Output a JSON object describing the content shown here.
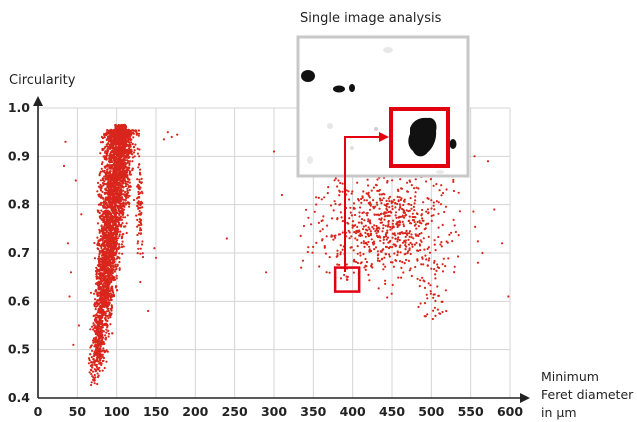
{
  "chart_data": {
    "type": "scatter",
    "title": "",
    "xlabel": "Minimum Feret diameter in µm",
    "xlabel_lines": [
      "Minimum",
      "Feret diameter",
      "in µm"
    ],
    "ylabel": "Circularity",
    "xlim": [
      0,
      600
    ],
    "ylim": [
      0.4,
      1.0
    ],
    "x_ticks": [
      "0",
      "50",
      "100",
      "150",
      "200",
      "250",
      "300",
      "350",
      "400",
      "450",
      "500",
      "550",
      "600"
    ],
    "y_ticks": [
      "0.4",
      "0.5",
      "0.6",
      "0.7",
      "0.8",
      "0.9",
      "1.0"
    ],
    "grid": true,
    "point_color": "#d9261c",
    "clusters": [
      {
        "name": "main",
        "x_range": [
          60,
          112
        ],
        "y_range": [
          0.4,
          0.965
        ],
        "approx_points": 3500
      },
      {
        "name": "secondary",
        "x_range": [
          330,
          530
        ],
        "y_range": [
          0.55,
          0.89
        ],
        "approx_points": 700
      }
    ],
    "scattered_points": [
      [
        35,
        0.93
      ],
      [
        42,
        0.66
      ],
      [
        48,
        0.85
      ],
      [
        33,
        0.88
      ],
      [
        55,
        0.78
      ],
      [
        52,
        0.55
      ],
      [
        40,
        0.61
      ],
      [
        38,
        0.72
      ],
      [
        45,
        0.51
      ],
      [
        170,
        0.94
      ],
      [
        165,
        0.95
      ],
      [
        177,
        0.945
      ],
      [
        160,
        0.935
      ],
      [
        150,
        0.69
      ],
      [
        148,
        0.71
      ],
      [
        140,
        0.58
      ],
      [
        130,
        0.64
      ],
      [
        240,
        0.73
      ],
      [
        290,
        0.66
      ],
      [
        310,
        0.82
      ],
      [
        300,
        0.91
      ],
      [
        555,
        0.9
      ],
      [
        572,
        0.89
      ],
      [
        580,
        0.79
      ],
      [
        590,
        0.72
      ],
      [
        598,
        0.61
      ],
      [
        565,
        0.7
      ]
    ],
    "highlight_point": {
      "x": 393,
      "y": 0.645
    },
    "inset": {
      "title": "Single image analysis",
      "border_color": "#c8c8c8",
      "highlight_color": "#e3000f"
    }
  }
}
